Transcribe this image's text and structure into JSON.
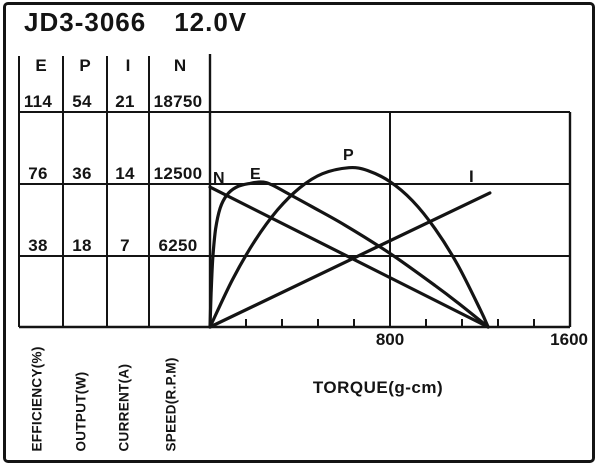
{
  "title": {
    "model": "JD3-3066",
    "voltage": "12.0V"
  },
  "table": {
    "headers": [
      "E",
      "P",
      "I",
      "N"
    ],
    "rows": [
      [
        "114",
        "54",
        "21",
        "18750"
      ],
      [
        "76",
        "36",
        "14",
        "12500"
      ],
      [
        "38",
        "18",
        "7",
        "6250"
      ]
    ],
    "axis_labels": [
      "EFFICIENCY(%)",
      "OUTPUT(W)",
      "CURRENT(A)",
      "SPEED(R.P.M)"
    ]
  },
  "chart_data": {
    "type": "line",
    "title": "JD3-3066 12.0V motor performance curves vs torque",
    "xlabel": "TORQUE(g-cm)",
    "xlim": [
      0,
      1600
    ],
    "x_tick_labels": [
      "800",
      "1600"
    ],
    "x_major_ticks": [
      800,
      1600
    ],
    "x_minor_tick_step": 160,
    "grid": true,
    "legend_position": "on-curve",
    "series": [
      {
        "label": "N",
        "name": "speed",
        "unit": "R.P.M",
        "yticks": [
          6250,
          12500,
          18750
        ],
        "points": [
          [
            0,
            12200
          ],
          [
            1236,
            0
          ]
        ]
      },
      {
        "label": "E",
        "name": "efficiency",
        "unit": "%",
        "yticks": [
          38,
          76,
          114
        ],
        "points": [
          [
            0,
            0
          ],
          [
            5,
            18
          ],
          [
            12,
            36
          ],
          [
            25,
            52
          ],
          [
            45,
            63
          ],
          [
            75,
            70
          ],
          [
            115,
            74
          ],
          [
            170,
            76
          ],
          [
            250,
            76.5
          ],
          [
            350,
            70.5
          ],
          [
            450,
            64
          ],
          [
            600,
            54
          ],
          [
            800,
            39
          ],
          [
            1000,
            22
          ],
          [
            1100,
            13
          ],
          [
            1236,
            0
          ]
        ]
      },
      {
        "label": "P",
        "name": "output-power",
        "unit": "W",
        "yticks": [
          18,
          36,
          54
        ],
        "points": [
          [
            0,
            0
          ],
          [
            100,
            11.9
          ],
          [
            200,
            21.7
          ],
          [
            300,
            29.4
          ],
          [
            400,
            35
          ],
          [
            500,
            38.5
          ],
          [
            618,
            40
          ],
          [
            700,
            39.3
          ],
          [
            800,
            36.5
          ],
          [
            900,
            31.7
          ],
          [
            1000,
            24.7
          ],
          [
            1100,
            15.7
          ],
          [
            1200,
            4.5
          ],
          [
            1236,
            0
          ]
        ]
      },
      {
        "label": "I",
        "name": "current",
        "unit": "A",
        "yticks": [
          7,
          14,
          21
        ],
        "points": [
          [
            0,
            0
          ],
          [
            1244,
            13.1
          ]
        ]
      }
    ]
  }
}
